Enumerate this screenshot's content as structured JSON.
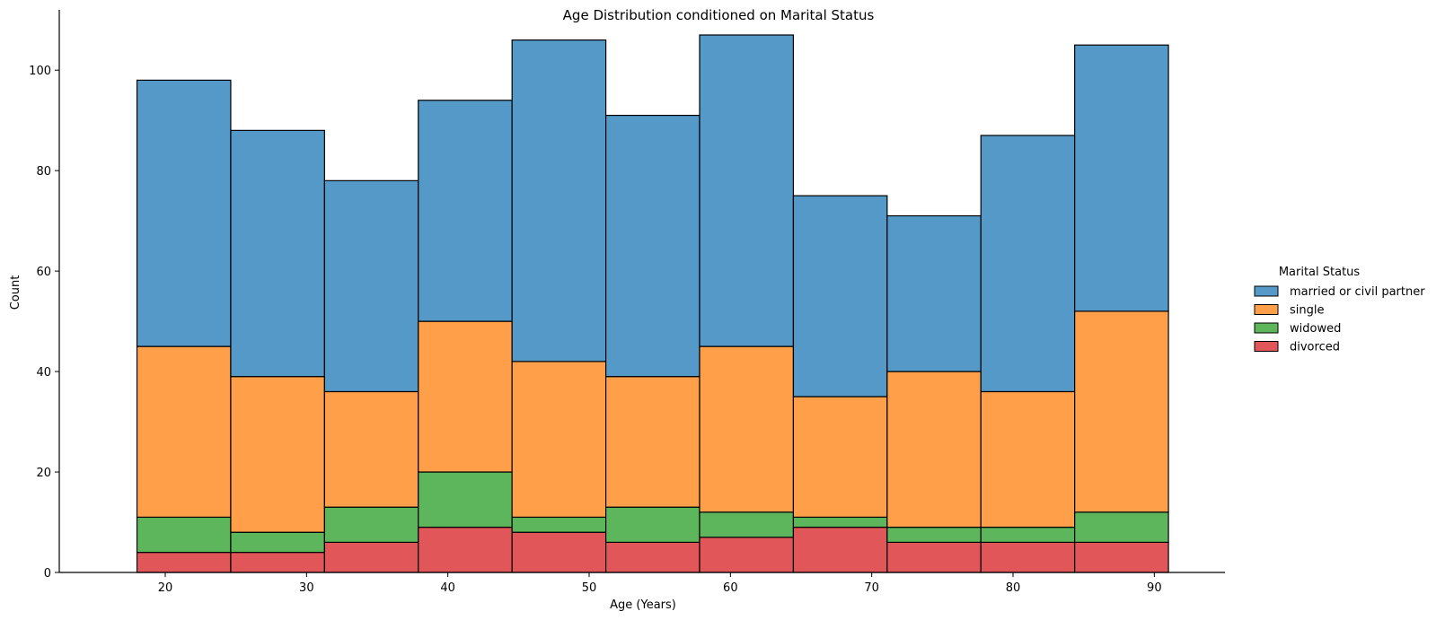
{
  "chart_data": {
    "type": "bar",
    "stacked": true,
    "title": "Age Distribution conditioned on Marital Status",
    "xlabel": "Age (Years)",
    "ylabel": "Count",
    "xlim": [
      12.5,
      95
    ],
    "ylim": [
      0,
      112
    ],
    "xticks": [
      20,
      30,
      40,
      50,
      60,
      70,
      80,
      90
    ],
    "yticks": [
      0,
      20,
      40,
      60,
      80,
      100
    ],
    "bin_edges": [
      18,
      24.636,
      31.273,
      37.909,
      44.545,
      51.182,
      57.818,
      64.455,
      71.091,
      77.727,
      84.364,
      91
    ],
    "series": [
      {
        "name": "divorced",
        "color": "#e15759",
        "values": [
          4,
          4,
          6,
          9,
          8,
          6,
          7,
          9,
          6,
          6,
          6
        ]
      },
      {
        "name": "widowed",
        "color": "#5db65c",
        "values": [
          7,
          4,
          7,
          11,
          3,
          7,
          5,
          2,
          3,
          3,
          6
        ]
      },
      {
        "name": "single",
        "color": "#ff9f4a",
        "values": [
          34,
          31,
          23,
          30,
          31,
          26,
          33,
          24,
          31,
          27,
          40
        ]
      },
      {
        "name": "married or civil partner",
        "color": "#5499c7",
        "values": [
          53,
          49,
          42,
          44,
          64,
          52,
          62,
          40,
          31,
          51,
          53
        ]
      }
    ],
    "legend": {
      "title": "Marital Status",
      "position": "right",
      "entries": [
        "married or civil partner",
        "single",
        "widowed",
        "divorced"
      ]
    },
    "grid": false
  }
}
